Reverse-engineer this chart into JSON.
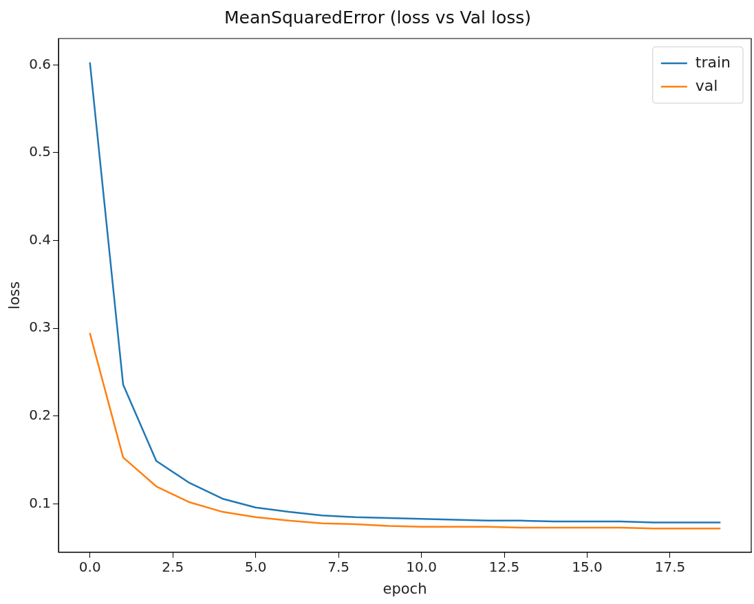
{
  "chart_data": {
    "type": "line",
    "title": "MeanSquaredError (loss vs Val loss)",
    "xlabel": "epoch",
    "ylabel": "loss",
    "x": [
      0,
      1,
      2,
      3,
      4,
      5,
      6,
      7,
      8,
      9,
      10,
      11,
      12,
      13,
      14,
      15,
      16,
      17,
      18,
      19
    ],
    "series": [
      {
        "name": "train",
        "color": "#1f77b4",
        "values": [
          0.602,
          0.236,
          0.149,
          0.124,
          0.106,
          0.096,
          0.091,
          0.087,
          0.085,
          0.084,
          0.083,
          0.082,
          0.081,
          0.081,
          0.08,
          0.08,
          0.08,
          0.079,
          0.079,
          0.079
        ]
      },
      {
        "name": "val",
        "color": "#ff7f0e",
        "values": [
          0.294,
          0.153,
          0.12,
          0.102,
          0.091,
          0.085,
          0.081,
          0.078,
          0.077,
          0.075,
          0.074,
          0.074,
          0.074,
          0.073,
          0.073,
          0.073,
          0.073,
          0.072,
          0.072,
          0.072
        ]
      }
    ],
    "xlim": [
      -0.95,
      19.95
    ],
    "ylim": [
      0.045,
      0.63
    ],
    "xticks": [
      {
        "value": 0,
        "label": "0.0"
      },
      {
        "value": 2.5,
        "label": "2.5"
      },
      {
        "value": 5,
        "label": "5.0"
      },
      {
        "value": 7.5,
        "label": "7.5"
      },
      {
        "value": 10,
        "label": "10.0"
      },
      {
        "value": 12.5,
        "label": "12.5"
      },
      {
        "value": 15,
        "label": "15.0"
      },
      {
        "value": 17.5,
        "label": "17.5"
      }
    ],
    "yticks": [
      0.1,
      0.2,
      0.3,
      0.4,
      0.5,
      0.6
    ],
    "grid": false,
    "legend": "top right",
    "marker": "none",
    "line_style": "solid"
  }
}
